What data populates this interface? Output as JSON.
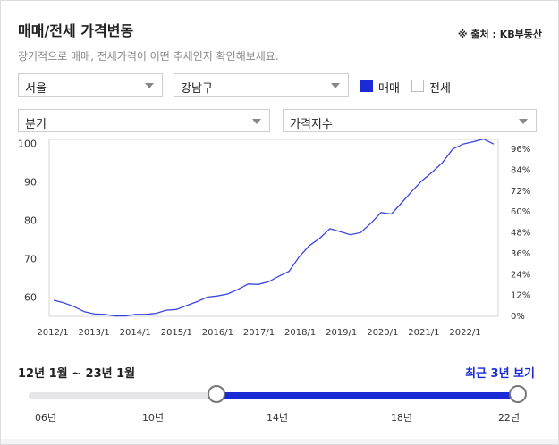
{
  "header": {
    "title": "매매/전세 가격변동",
    "source": "※ 출처 : KB부동산",
    "subtitle": "장기적으로 매매, 전세가격이 어떤 추세인지 확인해보세요."
  },
  "filters": {
    "city": "서울",
    "district": "강남구",
    "period": "분기",
    "metric": "가격지수",
    "sale_label": "매매",
    "lease_label": "전세",
    "sale_checked": true,
    "lease_checked": false
  },
  "chart_data": {
    "type": "line",
    "x_ticks": [
      "2012/1",
      "2013/1",
      "2014/1",
      "2015/1",
      "2016/1",
      "2017/1",
      "2018/1",
      "2019/1",
      "2020/1",
      "2021/1",
      "2022/1"
    ],
    "y_left_ticks": [
      "100",
      "90",
      "80",
      "70",
      "60"
    ],
    "y_right_ticks": [
      "96%",
      "84%",
      "72%",
      "60%",
      "48%",
      "36%",
      "24%",
      "12%",
      "0%"
    ],
    "ylim": [
      55,
      101
    ],
    "color": "#3a46e0",
    "series": [
      {
        "values": [
          59.2,
          58.5,
          57.5,
          56.2,
          55.6,
          55.5,
          55.1,
          55.1,
          55.5,
          55.5,
          55.8,
          56.6,
          56.8,
          57.8,
          58.8,
          60.0,
          60.3,
          60.8,
          62.0,
          63.4,
          63.3,
          64.0,
          65.4,
          66.7,
          70.5,
          73.4,
          75.3,
          77.8,
          77.0,
          76.2,
          76.8,
          79.2,
          82.0,
          81.6,
          84.5,
          87.5,
          90.3,
          92.5,
          95.0,
          98.5,
          99.8,
          100.4,
          101.1,
          99.8
        ]
      }
    ]
  },
  "slider": {
    "range_text": "12년 1월 ~ 23년 1월",
    "recent_link": "최근 3년 보기",
    "ticks": [
      "06년",
      "10년",
      "14년",
      "18년",
      "22년"
    ]
  }
}
